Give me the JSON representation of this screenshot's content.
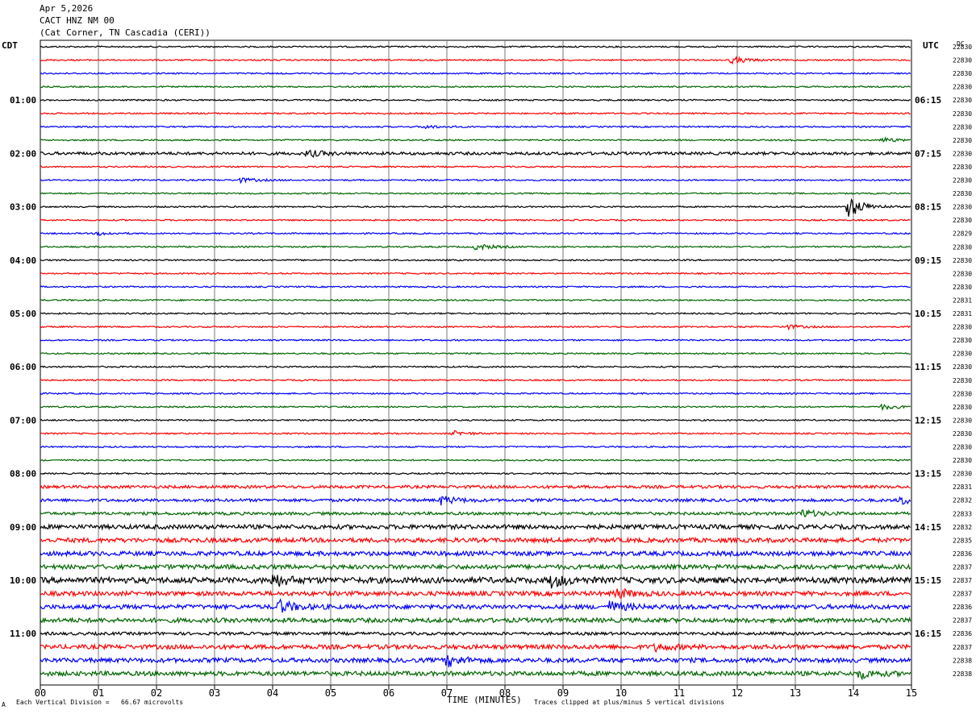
{
  "header": {
    "date": "Apr 5,2026",
    "station": "CACT HNZ NM 00",
    "location": "(Cat Corner, TN Cascadia (CERI))"
  },
  "left_tz": "CDT",
  "right_tz": "UTC",
  "dc_label": "DC",
  "footer": {
    "scale": "Each Vertical Division =   66.67 microvolts",
    "xaxis_title": "TIME (MINUTES)",
    "clip_note": "Traces clipped at plus/minus 5 vertical divisions",
    "corner_mark": "A"
  },
  "colors": [
    "#000000",
    "#ff0000",
    "#0000ff",
    "#006600"
  ],
  "chart_data": {
    "type": "line",
    "x_ticks": [
      "00",
      "01",
      "02",
      "03",
      "04",
      "05",
      "06",
      "07",
      "08",
      "09",
      "10",
      "11",
      "12",
      "13",
      "14",
      "15"
    ],
    "xlim": [
      0,
      15
    ],
    "row_count": 48,
    "left_hour_labels": [
      {
        "row": 4,
        "text": "01:00"
      },
      {
        "row": 8,
        "text": "02:00"
      },
      {
        "row": 12,
        "text": "03:00"
      },
      {
        "row": 16,
        "text": "04:00"
      },
      {
        "row": 20,
        "text": "05:00"
      },
      {
        "row": 24,
        "text": "06:00"
      },
      {
        "row": 28,
        "text": "07:00"
      },
      {
        "row": 32,
        "text": "08:00"
      },
      {
        "row": 36,
        "text": "09:00"
      },
      {
        "row": 40,
        "text": "10:00"
      },
      {
        "row": 44,
        "text": "11:00"
      }
    ],
    "right_hour_labels": [
      {
        "row": 4,
        "text": "06:15"
      },
      {
        "row": 8,
        "text": "07:15"
      },
      {
        "row": 12,
        "text": "08:15"
      },
      {
        "row": 16,
        "text": "09:15"
      },
      {
        "row": 20,
        "text": "10:15"
      },
      {
        "row": 24,
        "text": "11:15"
      },
      {
        "row": 28,
        "text": "12:15"
      },
      {
        "row": 32,
        "text": "13:15"
      },
      {
        "row": 36,
        "text": "14:15"
      },
      {
        "row": 40,
        "text": "15:15"
      },
      {
        "row": 44,
        "text": "16:15"
      }
    ],
    "dc_offsets": [
      "22830",
      "22830",
      "22830",
      "22830",
      "22830",
      "22830",
      "22830",
      "22830",
      "22830",
      "22830",
      "22830",
      "22830",
      "22830",
      "22830",
      "22829",
      "22830",
      "22830",
      "22830",
      "22830",
      "22831",
      "22831",
      "22830",
      "22830",
      "22830",
      "22830",
      "22830",
      "22830",
      "22830",
      "22830",
      "22830",
      "22830",
      "22830",
      "22830",
      "22831",
      "22832",
      "22833",
      "22832",
      "22835",
      "22836",
      "22837",
      "22837",
      "22837",
      "22836",
      "22837",
      "22836",
      "22837",
      "22838",
      "22838"
    ],
    "noise_levels": [
      1,
      1,
      1,
      1,
      1,
      1,
      1,
      1,
      2,
      1,
      1,
      1,
      1,
      1,
      1,
      1,
      1,
      1,
      1,
      1,
      1,
      1,
      1,
      1,
      1,
      1,
      1,
      1,
      1,
      1,
      1,
      1,
      1,
      2,
      2,
      2,
      3,
      3,
      3,
      3,
      4,
      3,
      3,
      3,
      2,
      3,
      3,
      3
    ],
    "events": [
      {
        "row": 1,
        "minute": 11.9,
        "amplitude": 4
      },
      {
        "row": 6,
        "minute": 6.6,
        "amplitude": 2
      },
      {
        "row": 7,
        "minute": 14.5,
        "amplitude": 3
      },
      {
        "row": 8,
        "minute": 4.6,
        "amplitude": 4
      },
      {
        "row": 10,
        "minute": 3.4,
        "amplitude": 3
      },
      {
        "row": 12,
        "minute": 13.9,
        "amplitude": 14
      },
      {
        "row": 14,
        "minute": 1.0,
        "amplitude": 2
      },
      {
        "row": 15,
        "minute": 7.5,
        "amplitude": 4
      },
      {
        "row": 21,
        "minute": 12.8,
        "amplitude": 3
      },
      {
        "row": 27,
        "minute": 14.5,
        "amplitude": 3
      },
      {
        "row": 29,
        "minute": 7.1,
        "amplitude": 3
      },
      {
        "row": 34,
        "minute": 6.9,
        "amplitude": 5
      },
      {
        "row": 34,
        "minute": 14.8,
        "amplitude": 5
      },
      {
        "row": 35,
        "minute": 13.1,
        "amplitude": 5
      },
      {
        "row": 40,
        "minute": 4.0,
        "amplitude": 7
      },
      {
        "row": 40,
        "minute": 8.8,
        "amplitude": 7
      },
      {
        "row": 41,
        "minute": 9.9,
        "amplitude": 6
      },
      {
        "row": 42,
        "minute": 4.1,
        "amplitude": 8
      },
      {
        "row": 42,
        "minute": 9.8,
        "amplitude": 6
      },
      {
        "row": 45,
        "minute": 10.6,
        "amplitude": 4
      },
      {
        "row": 46,
        "minute": 7.0,
        "amplitude": 7
      },
      {
        "row": 47,
        "minute": 14.1,
        "amplitude": 5
      }
    ]
  }
}
